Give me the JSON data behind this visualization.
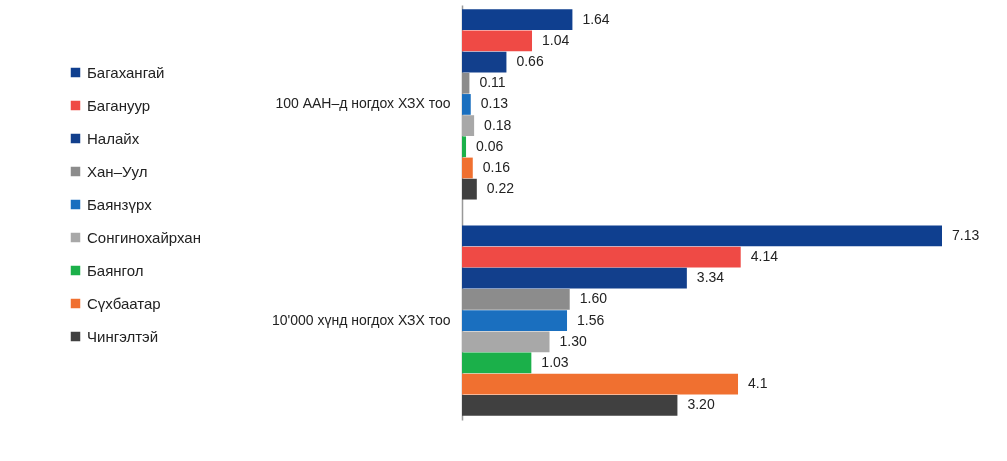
{
  "chart_data": {
    "type": "bar",
    "orientation": "horizontal",
    "categories": [
      "100 ААН–д ногдох ХЗХ тоо",
      "10'000 хүнд ногдох ХЗХ тоо"
    ],
    "series": [
      {
        "name": "Багахангай",
        "color": "#0f3f8f",
        "values": [
          1.64,
          7.13
        ],
        "value_labels": [
          "1.64",
          "7.13"
        ]
      },
      {
        "name": "Багануур",
        "color": "#ef4a45",
        "values": [
          1.04,
          4.14
        ],
        "value_labels": [
          "1.04",
          "4.14"
        ]
      },
      {
        "name": "Налайх",
        "color": "#123f8c",
        "values": [
          0.66,
          3.34
        ],
        "value_labels": [
          "0.66",
          "3.34"
        ]
      },
      {
        "name": "Хан–Уул",
        "color": "#8c8c8c",
        "values": [
          0.11,
          1.6
        ],
        "value_labels": [
          "0.11",
          "1.60"
        ]
      },
      {
        "name": "Баянзүрх",
        "color": "#1a6fbf",
        "values": [
          0.13,
          1.56
        ],
        "value_labels": [
          "0.13",
          "1.56"
        ]
      },
      {
        "name": "Сонгинохайрхан",
        "color": "#a8a8a8",
        "values": [
          0.18,
          1.3
        ],
        "value_labels": [
          "0.18",
          "1.30"
        ]
      },
      {
        "name": "Баянгол",
        "color": "#1bb04a",
        "values": [
          0.06,
          1.03
        ],
        "value_labels": [
          "0.06",
          "1.03"
        ]
      },
      {
        "name": "Сүхбаатар",
        "color": "#f07030",
        "values": [
          0.16,
          4.1
        ],
        "value_labels": [
          "0.16",
          "4.1"
        ]
      },
      {
        "name": "Чингэлтэй",
        "color": "#404040",
        "values": [
          0.22,
          3.2
        ],
        "value_labels": [
          "0.22",
          "3.20"
        ]
      }
    ],
    "legend": "left"
  }
}
